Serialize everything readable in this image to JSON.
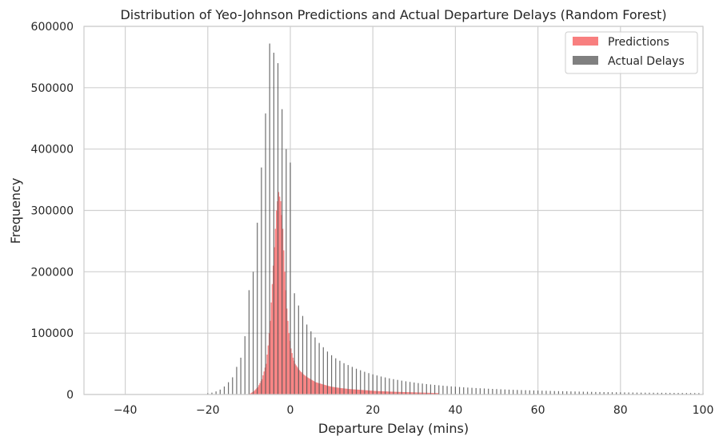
{
  "chart_data": {
    "type": "bar",
    "title": "Distribution of Yeo-Johnson Predictions and Actual Departure Delays (Random Forest)",
    "xlabel": "Departure Delay (mins)",
    "ylabel": "Frequency",
    "xlim": [
      -50,
      100
    ],
    "ylim": [
      0,
      600000
    ],
    "x_ticks": [
      -40,
      -20,
      0,
      20,
      40,
      60,
      80,
      100
    ],
    "x_tick_labels": [
      "−40",
      "−20",
      "0",
      "20",
      "40",
      "60",
      "80",
      "100"
    ],
    "y_ticks": [
      0,
      100000,
      200000,
      300000,
      400000,
      500000,
      600000
    ],
    "y_tick_labels": [
      "0",
      "100000",
      "200000",
      "300000",
      "400000",
      "500000",
      "600000"
    ],
    "grid": true,
    "legend_position": "top-right",
    "colors": {
      "predictions": "#f87f7f",
      "actual": "#555555"
    },
    "series": [
      {
        "name": "Predictions",
        "color": "#f87f7f",
        "x": [
          -10,
          -9,
          -8,
          -7,
          -6,
          -5.5,
          -5,
          -4.5,
          -4,
          -3.5,
          -3,
          -2.5,
          -2,
          -1.5,
          -1,
          -0.5,
          0,
          0.5,
          1,
          2,
          3,
          4,
          5,
          6,
          7,
          8,
          9,
          10,
          12,
          14,
          16,
          18,
          20,
          22,
          24,
          26,
          28,
          30,
          32,
          34,
          36
        ],
        "values": [
          1000,
          5000,
          12000,
          25000,
          50000,
          80000,
          120000,
          180000,
          240000,
          300000,
          330000,
          315000,
          270000,
          200000,
          140000,
          100000,
          75000,
          60000,
          50000,
          40000,
          33000,
          28000,
          24000,
          20000,
          18000,
          16000,
          14000,
          12500,
          10500,
          9000,
          8000,
          7000,
          6000,
          5300,
          4700,
          4200,
          3800,
          3400,
          3000,
          2600,
          2200
        ]
      },
      {
        "name": "Actual Delays",
        "color": "#555555",
        "x": [
          -20,
          -19,
          -18,
          -17,
          -16,
          -15,
          -14,
          -13,
          -12,
          -11,
          -10,
          -9,
          -8,
          -7,
          -6,
          -5,
          -4,
          -3,
          -2,
          -1,
          0,
          1,
          2,
          3,
          4,
          5,
          6,
          7,
          8,
          9,
          10,
          11,
          12,
          13,
          14,
          15,
          16,
          17,
          18,
          19,
          20,
          21,
          22,
          23,
          24,
          25,
          26,
          27,
          28,
          29,
          30,
          31,
          32,
          33,
          34,
          35,
          36,
          37,
          38,
          39,
          40,
          41,
          42,
          43,
          44,
          45,
          46,
          47,
          48,
          49,
          50,
          51,
          52,
          53,
          54,
          55,
          56,
          57,
          58,
          59,
          60,
          61,
          62,
          63,
          64,
          65,
          66,
          67,
          68,
          69,
          70,
          71,
          72,
          73,
          74,
          75,
          76,
          77,
          78,
          79,
          80,
          81,
          82,
          83,
          84,
          85,
          86,
          87,
          88,
          89,
          90,
          91,
          92,
          93,
          94,
          95,
          96,
          97,
          98,
          99,
          100
        ],
        "values": [
          2000,
          3000,
          5000,
          8000,
          13000,
          20000,
          28000,
          45000,
          60000,
          95000,
          170000,
          200000,
          280000,
          370000,
          458000,
          572000,
          557000,
          540000,
          465000,
          400000,
          378000,
          165000,
          145000,
          128000,
          114000,
          103000,
          93000,
          84000,
          77000,
          70000,
          64000,
          59000,
          55000,
          51000,
          48000,
          45000,
          42000,
          39500,
          37000,
          34800,
          32800,
          31000,
          29300,
          27800,
          26300,
          25000,
          23800,
          22600,
          21500,
          20500,
          19500,
          18600,
          17800,
          17000,
          16300,
          15600,
          15000,
          14400,
          13800,
          13200,
          12700,
          12200,
          11700,
          11300,
          10900,
          10500,
          10100,
          9800,
          9400,
          9100,
          8800,
          8500,
          8200,
          7900,
          7600,
          7400,
          7200,
          7000,
          6800,
          6600,
          6400,
          6200,
          6000,
          5800,
          5600,
          5450,
          5300,
          5150,
          5000,
          4850,
          4700,
          4550,
          4400,
          4250,
          4100,
          4000,
          3900,
          3800,
          3700,
          3600,
          3500,
          3400,
          3300,
          3200,
          3100,
          3000,
          2950,
          2900,
          2850,
          2800,
          2750,
          2700,
          2650,
          2600,
          2550,
          2500,
          2450,
          2400,
          2350,
          2300,
          2250
        ]
      }
    ]
  }
}
